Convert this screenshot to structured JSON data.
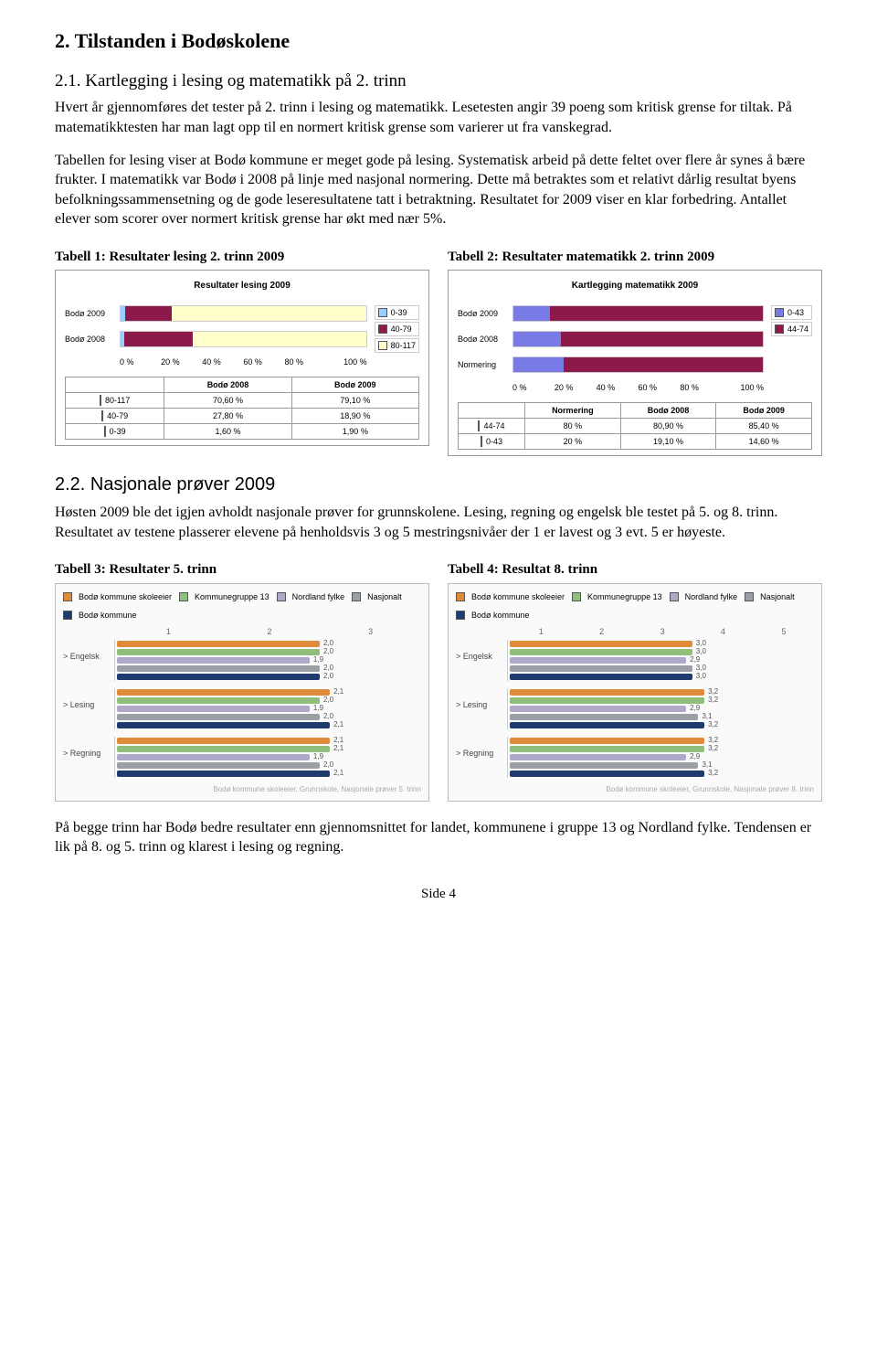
{
  "section": {
    "title": "2. Tilstanden i Bodøskolene",
    "sub1_title": "2.1. Kartlegging i lesing og matematikk på 2. trinn",
    "p1": "Hvert år gjennomføres det tester på 2. trinn i lesing og matematikk. Lesetesten angir 39 poeng som kritisk grense for tiltak. På matematikktesten har man lagt opp til en normert kritisk grense som varierer ut fra vanskegrad.",
    "p2": "Tabellen for lesing viser at Bodø kommune er meget gode på lesing. Systematisk arbeid på dette feltet over flere år synes å bære frukter.  I matematikk var Bodø i 2008 på linje med nasjonal normering.  Dette må betraktes som et relativt dårlig resultat byens befolkningssammensetning og de gode leseresultatene tatt i betraktning. Resultatet for 2009 viser en klar forbedring. Antallet elever som scorer over normert kritisk grense har økt med nær 5%.",
    "sub2_title": "2.2. Nasjonale prøver 2009",
    "p3": "Høsten 2009 ble det igjen avholdt nasjonale prøver for grunnskolene.  Lesing, regning og engelsk ble testet på 5. og 8. trinn.  Resultatet av testene plasserer elevene på henholdsvis 3 og 5 mestringsnivåer der 1 er lavest og 3 evt. 5 er høyeste.",
    "p4": "På begge trinn har Bodø bedre resultater enn gjennomsnittet for landet, kommunene i gruppe 13 og Nordland fylke. Tendensen er lik på 8. og 5. trinn og klarest i lesing og regning."
  },
  "tabell1": {
    "title": "Tabell 1: Resultater lesing 2. trinn 2009",
    "chart_title": "Resultater lesing 2009",
    "type": "stacked-bar-horizontal",
    "axis_ticks": [
      "0 %",
      "20 %",
      "40 %",
      "60 %",
      "80 %",
      "100 %"
    ],
    "categories": [
      "Bodø 2009",
      "Bodø 2008"
    ],
    "ranges": [
      "0-39",
      "40-79",
      "80-117"
    ],
    "colors": {
      "0-39": "#99ccff",
      "40-79": "#8b1a4b",
      "80-117": "#ffffcc"
    },
    "table_cols": [
      "",
      "Bodø 2008",
      "Bodø 2009"
    ],
    "rows": [
      {
        "label": "80-117",
        "swatch": "#ffffcc",
        "v2008": "70,60 %",
        "v2009": "79,10 %"
      },
      {
        "label": "40-79",
        "swatch": "#8b1a4b",
        "v2008": "27,80 %",
        "v2009": "18,90 %"
      },
      {
        "label": "0-39",
        "swatch": "#99ccff",
        "v2008": "1,60 %",
        "v2009": "1,90 %"
      }
    ],
    "bar2009": {
      "s1": 1.9,
      "s2": 18.9,
      "s3": 79.1
    },
    "bar2008": {
      "s1": 1.6,
      "s2": 27.8,
      "s3": 70.6
    }
  },
  "tabell2": {
    "title": "Tabell 2: Resultater matematikk 2. trinn 2009",
    "chart_title": "Kartlegging matematikk 2009",
    "type": "stacked-bar-horizontal",
    "axis_ticks": [
      "0 %",
      "20 %",
      "40 %",
      "60 %",
      "80 %",
      "100 %"
    ],
    "categories": [
      "Bodø 2009",
      "Bodø 2008",
      "Normering"
    ],
    "ranges": [
      "0-43",
      "44-74"
    ],
    "colors": {
      "0-43": "#7a7ae6",
      "44-74": "#8b1a4b"
    },
    "table_cols": [
      "",
      "Normering",
      "Bodø 2008",
      "Bodø 2009"
    ],
    "rows": [
      {
        "label": "44-74",
        "swatch": "#8b1a4b",
        "norm": "80 %",
        "v2008": "80,90 %",
        "v2009": "85,40 %"
      },
      {
        "label": "0-43",
        "swatch": "#7a7ae6",
        "norm": "20 %",
        "v2008": "19,10 %",
        "v2009": "14,60 %"
      }
    ],
    "bar2009": {
      "s1": 14.6,
      "s2": 85.4
    },
    "bar2008": {
      "s1": 19.1,
      "s2": 80.9
    },
    "barNorm": {
      "s1": 20.0,
      "s2": 80.0
    }
  },
  "tabell3": {
    "title": "Tabell 3: Resultater 5. trinn",
    "scale_max": 3,
    "scale_labels": [
      "1",
      "2",
      "3"
    ],
    "legend": {
      "skoleeier": {
        "label": "Bodø kommune skoleeier",
        "color": "#e08b3a"
      },
      "gruppe13": {
        "label": "Kommunegruppe 13",
        "color": "#8fbf7a"
      },
      "fylke": {
        "label": "Nordland fylke",
        "color": "#b0a8c9"
      },
      "nasjonalt": {
        "label": "Nasjonalt",
        "color": "#9aa0a6"
      },
      "kommune": {
        "label": "Bodø kommune",
        "color": "#1f3a6e"
      }
    },
    "topics": [
      {
        "name": "Engelsk",
        "arrow": ">",
        "values": {
          "skoleeier": 2,
          "gruppe13": 2.0,
          "fylke": 1.9,
          "nasjonalt": 2.0,
          "kommune": 2
        }
      },
      {
        "name": "Lesing",
        "arrow": ">",
        "values": {
          "skoleeier": 2.1,
          "gruppe13": 2.0,
          "fylke": 1.9,
          "nasjonalt": 2.0,
          "kommune": 2.1
        }
      },
      {
        "name": "Regning",
        "arrow": ">",
        "values": {
          "skoleeier": 2.1,
          "gruppe13": 2.1,
          "fylke": 1.9,
          "nasjonalt": 2.0,
          "kommune": 2.1
        }
      }
    ],
    "footer": "Bodø kommune skoleeier, Grunnskole, Nasjonale prøver 5. trinn"
  },
  "tabell4": {
    "title": "Tabell 4: Resultat 8. trinn",
    "scale_max": 5,
    "scale_labels": [
      "1",
      "2",
      "3",
      "4",
      "5"
    ],
    "legend": {
      "skoleeier": {
        "label": "Bodø kommune skoleeier",
        "color": "#e08b3a"
      },
      "gruppe13": {
        "label": "Kommunegruppe 13",
        "color": "#8fbf7a"
      },
      "fylke": {
        "label": "Nordland fylke",
        "color": "#b0a8c9"
      },
      "nasjonalt": {
        "label": "Nasjonalt",
        "color": "#9aa0a6"
      },
      "kommune": {
        "label": "Bodø kommune",
        "color": "#1f3a6e"
      }
    },
    "topics": [
      {
        "name": "Engelsk",
        "arrow": ">",
        "values": {
          "skoleeier": 3.0,
          "gruppe13": 3.0,
          "fylke": 2.9,
          "nasjonalt": 3.0,
          "kommune": 3.0
        }
      },
      {
        "name": "Lesing",
        "arrow": ">",
        "values": {
          "skoleeier": 3.2,
          "gruppe13": 3.2,
          "fylke": 2.9,
          "nasjonalt": 3.1,
          "kommune": 3.2
        }
      },
      {
        "name": "Regning",
        "arrow": ">",
        "values": {
          "skoleeier": 3.2,
          "gruppe13": 3.2,
          "fylke": 2.9,
          "nasjonalt": 3.1,
          "kommune": 3.2
        }
      }
    ],
    "footer": "Bodø kommune skoleeier, Grunnskole, Nasjonale prøver 8. trinn"
  },
  "footer": {
    "text": "Side 4"
  }
}
